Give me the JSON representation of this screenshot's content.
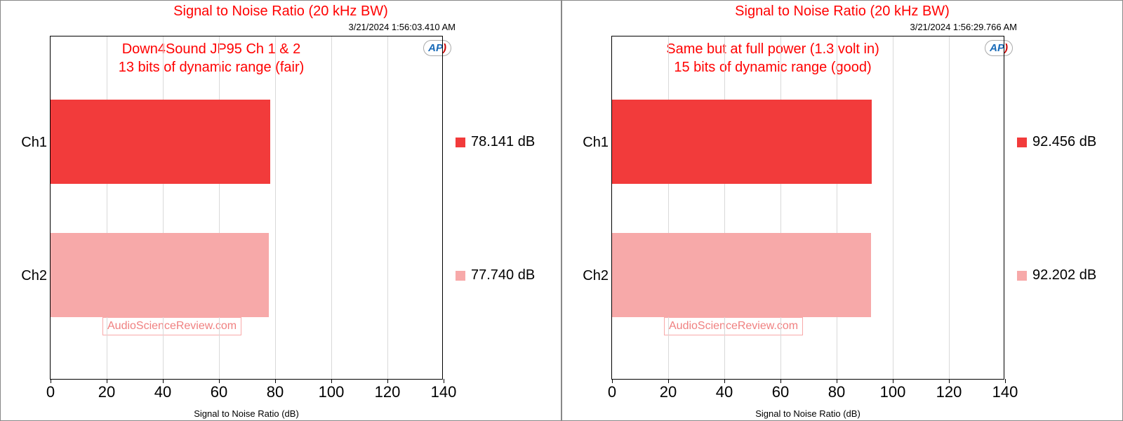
{
  "shared": {
    "title": "Signal to Noise Ratio (20 kHz BW)",
    "title_color": "#ff0000",
    "xlabel": "Signal to Noise Ratio (dB)",
    "watermark": "AudioScienceReview.com",
    "watermark_color": "#f08080",
    "ap_logo": "AP",
    "ap_logo_color": "#1a6bb8",
    "xlim_min": 0,
    "xlim_max": 140,
    "xtick_step": 20,
    "xticks": [
      "0",
      "20",
      "40",
      "60",
      "80",
      "100",
      "120",
      "140"
    ],
    "grid_color": "#d9d9d9",
    "ylabels": [
      "Ch1",
      "Ch2"
    ],
    "bar_colors": [
      "#f23b3b",
      "#f7a9a9"
    ],
    "legend_unit": "dB"
  },
  "panels": [
    {
      "timestamp": "3/21/2024 1:56:03.410 AM",
      "subtitle_l1": "Down4Sound JP95 Ch 1 & 2",
      "subtitle_l2": "13 bits of dynamic range (fair)",
      "subtitle_color": "#ff0000",
      "values": [
        78.141,
        77.74
      ],
      "legend_labels": [
        "78.141 dB",
        "77.740 dB"
      ]
    },
    {
      "timestamp": "3/21/2024 1:56:29.766 AM",
      "subtitle_l1": "Same but at full power (1.3 volt in)",
      "subtitle_l2": "15 bits of dynamic range (good)",
      "subtitle_color": "#ff0000",
      "values": [
        92.456,
        92.202
      ],
      "legend_labels": [
        "92.456 dB",
        "92.202 dB"
      ]
    }
  ]
}
